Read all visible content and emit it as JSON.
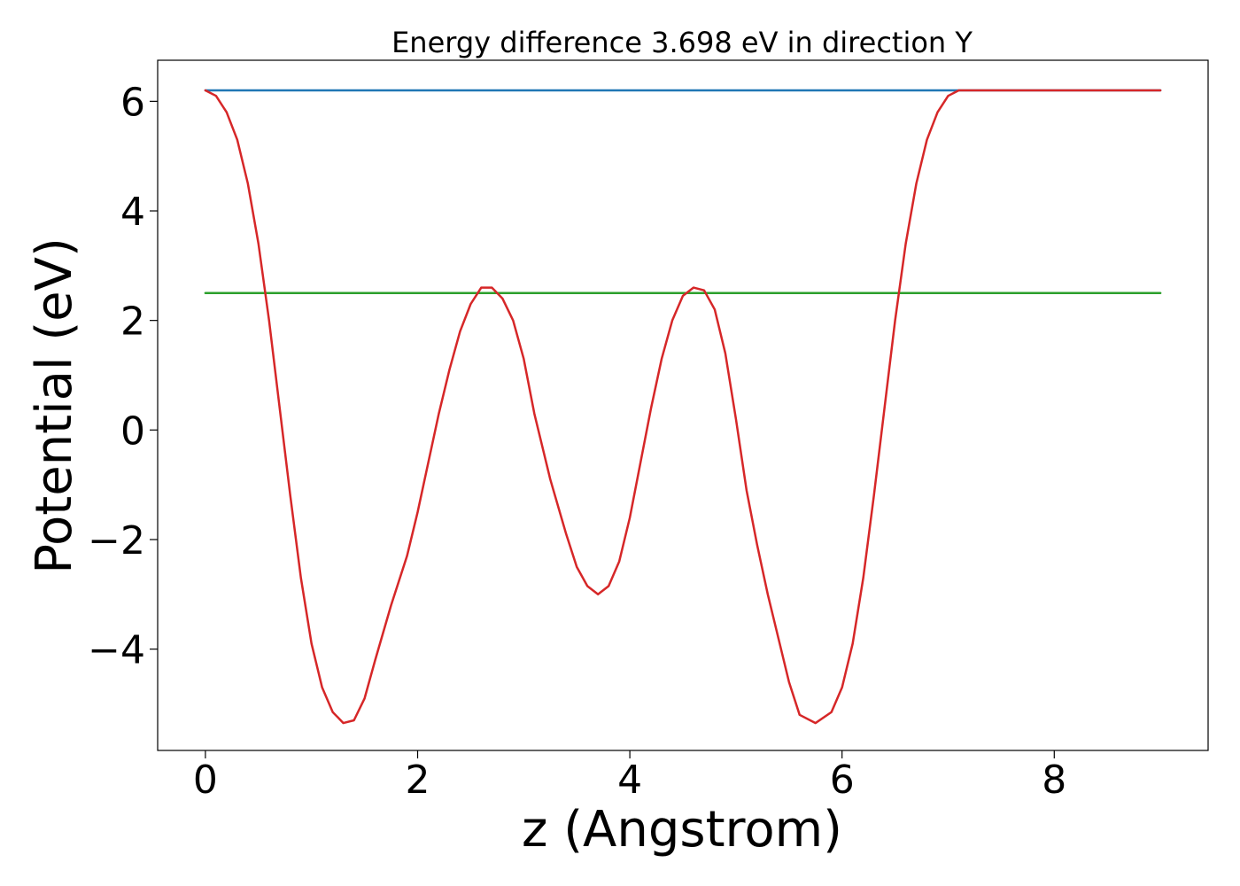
{
  "chart_data": {
    "type": "line",
    "title": "Energy difference 3.698 eV in direction Y",
    "xlabel": "z (Angstrom)",
    "ylabel": "Potential (eV)",
    "xlim": [
      -0.45,
      9.45
    ],
    "ylim": [
      -5.85,
      6.75
    ],
    "x_ticks": [
      0,
      2,
      4,
      6,
      8
    ],
    "x_tick_labels": [
      "0",
      "2",
      "4",
      "6",
      "8"
    ],
    "y_ticks": [
      -4,
      -2,
      0,
      2,
      4,
      6
    ],
    "y_tick_labels": [
      "−4",
      "−2",
      "0",
      "2",
      "4",
      "6"
    ],
    "grid": false,
    "legend": "none",
    "series": [
      {
        "color": "#1f77b4",
        "x": [
          0,
          9
        ],
        "y": [
          6.2,
          6.2
        ]
      },
      {
        "color": "#2ca02c",
        "x": [
          0,
          9
        ],
        "y": [
          2.5,
          2.5
        ]
      },
      {
        "color": "#d62728",
        "x": [
          0.0,
          0.1,
          0.2,
          0.3,
          0.4,
          0.5,
          0.6,
          0.7,
          0.8,
          0.9,
          1.0,
          1.1,
          1.2,
          1.3,
          1.4,
          1.5,
          1.6,
          1.75,
          1.9,
          2.0,
          2.1,
          2.2,
          2.3,
          2.4,
          2.5,
          2.6,
          2.7,
          2.8,
          2.9,
          3.0,
          3.1,
          3.25,
          3.4,
          3.5,
          3.6,
          3.7,
          3.8,
          3.9,
          4.0,
          4.1,
          4.2,
          4.3,
          4.4,
          4.5,
          4.6,
          4.7,
          4.8,
          4.9,
          5.0,
          5.1,
          5.2,
          5.3,
          5.4,
          5.5,
          5.6,
          5.75,
          5.9,
          6.0,
          6.1,
          6.2,
          6.3,
          6.4,
          6.5,
          6.6,
          6.7,
          6.8,
          6.9,
          7.0,
          7.1,
          7.25,
          7.4,
          7.5,
          7.6,
          7.7,
          7.8,
          7.9,
          8.0,
          8.1,
          8.2,
          8.3,
          8.4,
          8.5,
          8.6,
          8.7,
          8.8,
          8.9,
          9.0
        ],
        "y": [
          6.2,
          6.1,
          5.8,
          5.3,
          4.5,
          3.4,
          2.0,
          0.4,
          -1.2,
          -2.7,
          -3.9,
          -4.7,
          -5.15,
          -5.35,
          -5.3,
          -4.9,
          -4.2,
          -3.2,
          -2.3,
          -1.5,
          -0.6,
          0.3,
          1.1,
          1.8,
          2.3,
          2.6,
          2.6,
          2.4,
          2.0,
          1.3,
          0.3,
          -0.9,
          -1.9,
          -2.5,
          -2.85,
          -3.0,
          -2.85,
          -2.4,
          -1.6,
          -0.6,
          0.4,
          1.3,
          2.0,
          2.45,
          2.6,
          2.55,
          2.2,
          1.4,
          0.2,
          -1.1,
          -2.1,
          -3.0,
          -3.8,
          -4.6,
          -5.2,
          -5.35,
          -5.15,
          -4.7,
          -3.9,
          -2.7,
          -1.2,
          0.4,
          2.0,
          3.4,
          4.5,
          5.3,
          5.8,
          6.1,
          6.2,
          6.2,
          6.2,
          6.2,
          6.2,
          6.2,
          6.2,
          6.2,
          6.2,
          6.2,
          6.2,
          6.2,
          6.2,
          6.2,
          6.2,
          6.2,
          6.2,
          6.2,
          6.2
        ]
      }
    ]
  }
}
